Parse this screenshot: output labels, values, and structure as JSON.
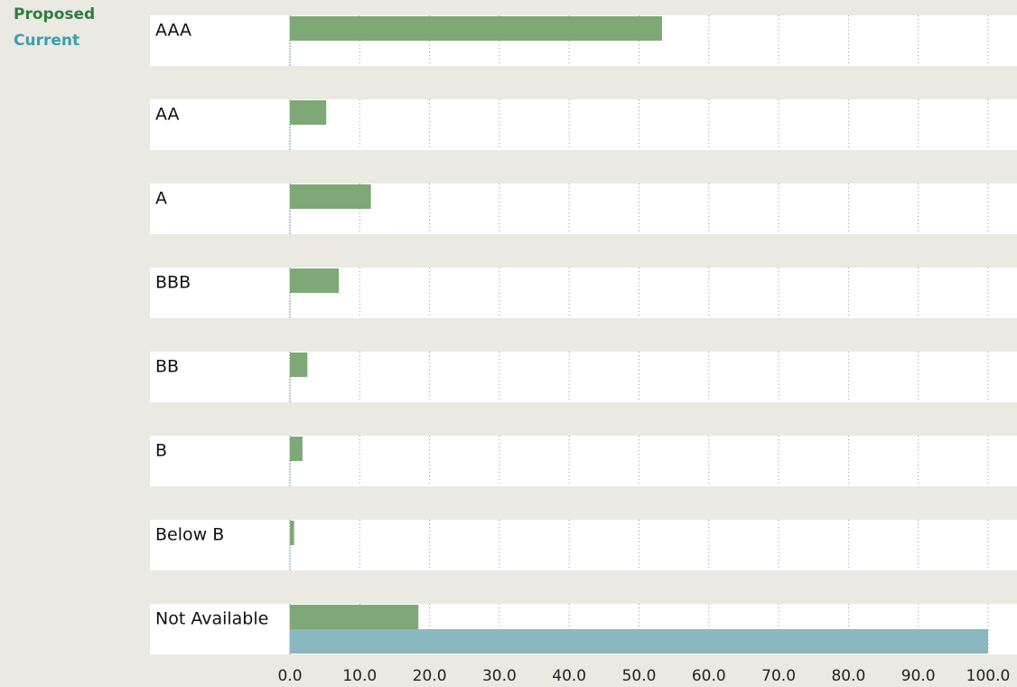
{
  "chart_data": {
    "type": "hbar",
    "categories": [
      "AAA",
      "AA",
      "A",
      "BBB",
      "BB",
      "B",
      "Below B",
      "Not Available"
    ],
    "series": [
      {
        "name": "Proposed",
        "color": "#7ea876",
        "legend_color": "#2e7d3e",
        "values": [
          53.3,
          5.2,
          11.6,
          7.0,
          2.5,
          1.8,
          0.6,
          18.4
        ]
      },
      {
        "name": "Current",
        "color": "#8ab8c0",
        "legend_color": "#3aa0a8",
        "values": [
          0,
          0,
          0,
          0,
          0,
          0,
          0,
          100
        ]
      }
    ],
    "xlim": [
      0,
      100
    ],
    "xticks": [
      {
        "value": 0,
        "label": "0.0"
      },
      {
        "value": 10,
        "label": "10.0"
      },
      {
        "value": 20,
        "label": "20.0"
      },
      {
        "value": 30,
        "label": "30.0"
      },
      {
        "value": 40,
        "label": "40.0"
      },
      {
        "value": 50,
        "label": "50.0"
      },
      {
        "value": 60,
        "label": "60.0"
      },
      {
        "value": 70,
        "label": "70.0"
      },
      {
        "value": 80,
        "label": "80.0"
      },
      {
        "value": 90,
        "label": "90.0"
      },
      {
        "value": 100,
        "label": "100.0"
      }
    ],
    "grid": true
  }
}
